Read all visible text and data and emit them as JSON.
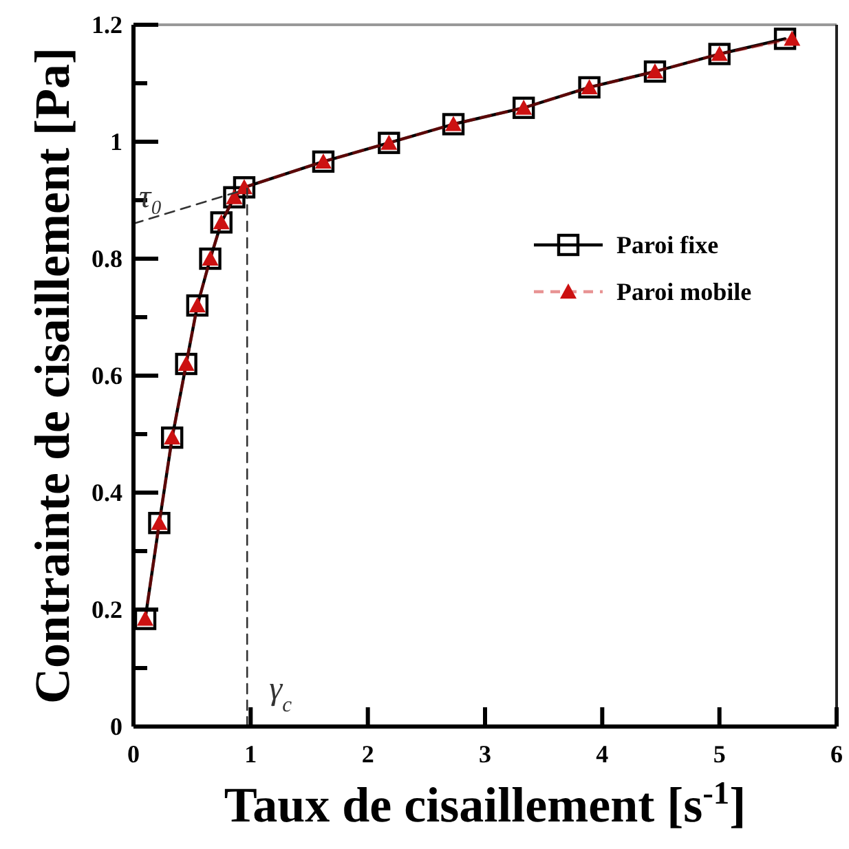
{
  "chart_data": {
    "type": "line",
    "xlabel": "Taux de cisaillement [s$^{-1}$]",
    "ylabel": "Contrainte de cisaillement [Pa]",
    "xlim": [
      0,
      6
    ],
    "ylim": [
      0,
      1.2
    ],
    "xticks": [
      0,
      1,
      2,
      3,
      4,
      5,
      6
    ],
    "yticks": [
      0,
      {
        "value": 0.1,
        "label": null
      },
      0.2,
      {
        "value": 0.3,
        "label": null
      },
      0.4,
      {
        "value": 0.5,
        "label": null
      },
      0.6,
      {
        "value": 0.7,
        "label": null
      },
      0.8,
      {
        "value": 0.9,
        "label": null
      },
      1,
      {
        "value": 1.1,
        "label": null
      },
      1.2
    ],
    "grid": false,
    "legend": "right",
    "series": [
      {
        "name": "Paroi fixe",
        "color": "#000000",
        "marker": "square",
        "line_style": "solid",
        "x": [
          0.1,
          0.22,
          0.33,
          0.45,
          0.545,
          0.655,
          0.75,
          0.86,
          0.945,
          1.62,
          2.18,
          2.73,
          3.33,
          3.89,
          4.45,
          5.0,
          5.56
        ],
        "values": [
          0.184,
          0.348,
          0.494,
          0.62,
          0.72,
          0.8,
          0.862,
          0.905,
          0.922,
          0.966,
          0.998,
          1.03,
          1.058,
          1.093,
          1.12,
          1.15,
          1.176
        ]
      },
      {
        "name": "Paroi mobile",
        "color": "#cc1111",
        "marker": "triangle",
        "line_style": "dashed",
        "x": [
          0.1,
          0.22,
          0.33,
          0.45,
          0.545,
          0.655,
          0.75,
          0.86,
          0.945,
          1.62,
          2.18,
          2.73,
          3.33,
          3.89,
          4.45,
          5.0,
          5.62
        ],
        "values": [
          0.184,
          0.348,
          0.494,
          0.62,
          0.72,
          0.8,
          0.862,
          0.905,
          0.922,
          0.966,
          0.998,
          1.03,
          1.058,
          1.093,
          1.12,
          1.15,
          1.176
        ]
      },
      {
        "color": "#333333",
        "marker": "none",
        "line_style": "dashed",
        "x": [
          0,
          0.9
        ],
        "values": [
          0.86,
          0.915
        ]
      },
      {
        "color": "#333333",
        "marker": "none",
        "line_style": "dashed",
        "x": [
          0.97,
          0.97
        ],
        "values": [
          0,
          0.92
        ]
      }
    ],
    "annotations": [
      {
        "text": "τ₀",
        "x": 0,
        "y": 0.86
      },
      {
        "text": "γ$_{c}$",
        "x": 0.97,
        "y": 0
      }
    ]
  }
}
